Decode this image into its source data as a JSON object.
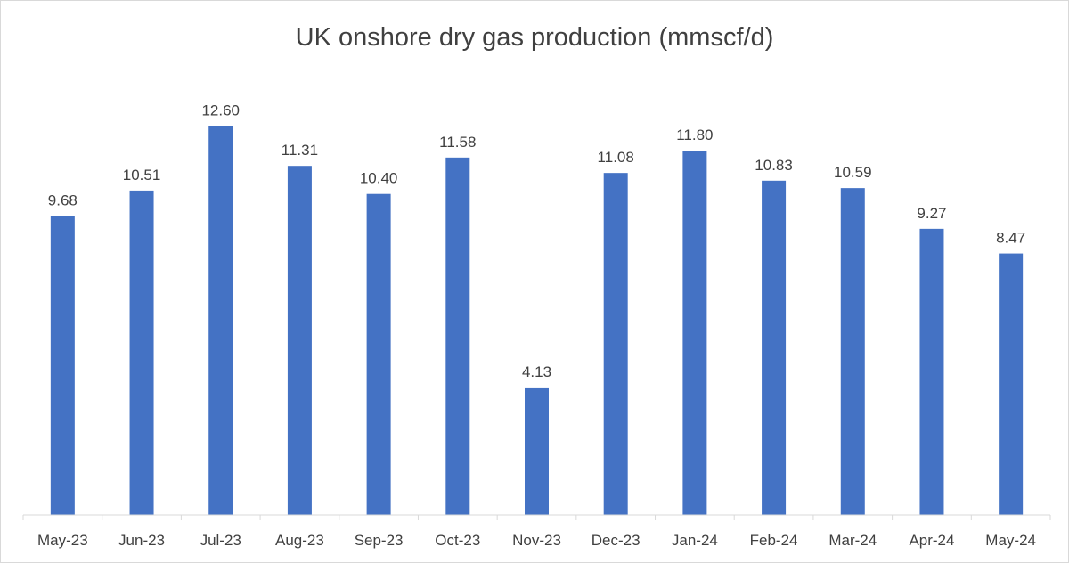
{
  "chart_data": {
    "type": "bar",
    "title": "UK onshore dry gas production (mmscf/d)",
    "xlabel": "",
    "ylabel": "",
    "categories": [
      "May-23",
      "Jun-23",
      "Jul-23",
      "Aug-23",
      "Sep-23",
      "Oct-23",
      "Nov-23",
      "Dec-23",
      "Jan-24",
      "Feb-24",
      "Mar-24",
      "Apr-24",
      "May-24"
    ],
    "values": [
      9.68,
      10.51,
      12.6,
      11.31,
      10.4,
      11.58,
      4.13,
      11.08,
      11.8,
      10.83,
      10.59,
      9.27,
      8.47
    ],
    "data_labels": [
      "9.68",
      "10.51",
      "12.60",
      "11.31",
      "10.40",
      "11.58",
      "4.13",
      "11.08",
      "11.80",
      "10.83",
      "10.59",
      "9.27",
      "8.47"
    ],
    "ylim": [
      0,
      14
    ],
    "grid": false,
    "legend": "none",
    "colors": {
      "bar": "#4472c4",
      "text": "#404040",
      "axis": "#d9d9d9"
    }
  }
}
